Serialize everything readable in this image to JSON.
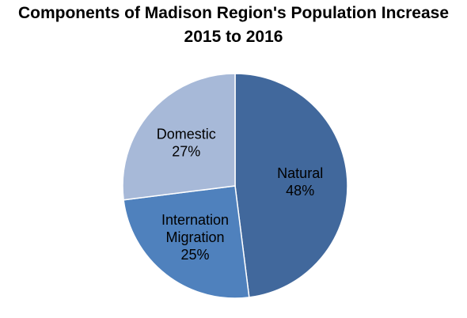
{
  "chart_data": {
    "type": "pie",
    "title_line1": "Components of Madison Region's Population Increase",
    "title_line2": "2015 to 2016",
    "slices": [
      {
        "name": "Natural",
        "label_lines": [
          "Natural"
        ],
        "pct_label": "48%",
        "value": 48,
        "color": "#41689C"
      },
      {
        "name": "Internation Migration",
        "label_lines": [
          "Internation",
          "Migration"
        ],
        "pct_label": "25%",
        "value": 25,
        "color": "#4F81BD"
      },
      {
        "name": "Domestic",
        "label_lines": [
          "Domestic"
        ],
        "pct_label": "27%",
        "value": 27,
        "color": "#A7B9D8"
      }
    ],
    "start_angle_deg": 0,
    "direction": "clockwise",
    "legend": "none"
  }
}
